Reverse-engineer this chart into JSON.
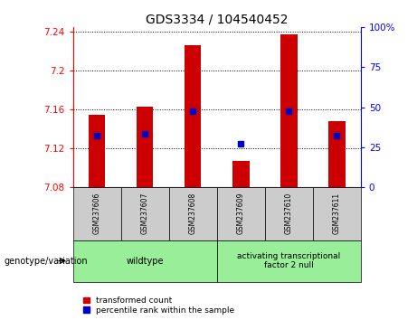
{
  "title": "GDS3334 / 104540452",
  "samples": [
    "GSM237606",
    "GSM237607",
    "GSM237608",
    "GSM237609",
    "GSM237610",
    "GSM237611"
  ],
  "bar_bottoms": [
    7.08,
    7.08,
    7.08,
    7.08,
    7.08,
    7.08
  ],
  "bar_tops": [
    7.155,
    7.163,
    7.226,
    7.107,
    7.238,
    7.148
  ],
  "blue_markers": [
    7.133,
    7.135,
    7.158,
    7.125,
    7.158,
    7.133
  ],
  "ylim_left": [
    7.08,
    7.245
  ],
  "ylim_right": [
    0,
    100
  ],
  "yticks_left": [
    7.08,
    7.12,
    7.16,
    7.2,
    7.24
  ],
  "ytick_labels_left": [
    "7.08",
    "7.12",
    "7.16",
    "7.2",
    "7.24"
  ],
  "yticks_right": [
    0,
    25,
    50,
    75,
    100
  ],
  "ytick_labels_right": [
    "0",
    "25",
    "50",
    "75",
    "100%"
  ],
  "bar_color": "#cc0000",
  "blue_color": "#0000cc",
  "wildtype_group": [
    0,
    1,
    2
  ],
  "atf2null_group": [
    3,
    4,
    5
  ],
  "wildtype_label": "wildtype",
  "atf2null_label": "activating transcriptional\nfactor 2 null",
  "group_bg_color": "#99ee99",
  "sample_box_color": "#cccccc",
  "legend_red_label": "transformed count",
  "legend_blue_label": "percentile rank within the sample",
  "genotype_label": "genotype/variation",
  "title_fontsize": 10,
  "axis_fontsize": 7.5,
  "tick_fontsize": 7.5
}
